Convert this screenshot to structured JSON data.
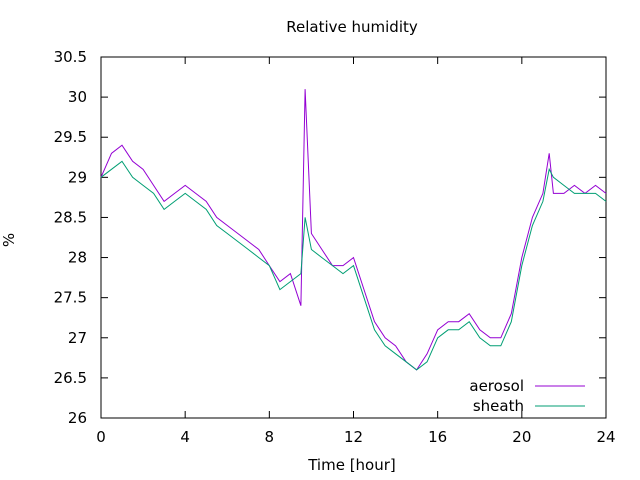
{
  "chart_data": {
    "type": "line",
    "title": "Relative humidity",
    "xlabel": "Time [hour]",
    "ylabel": "%",
    "xlim": [
      0,
      24
    ],
    "ylim": [
      26,
      30.5
    ],
    "xticks": [
      "0",
      "4",
      "8",
      "12",
      "16",
      "20",
      "24"
    ],
    "yticks": [
      "26",
      "26.5",
      "27",
      "27.5",
      "28",
      "28.5",
      "29",
      "29.5",
      "30",
      "30.5"
    ],
    "grid": false,
    "legend": "bottom-right",
    "x": [
      0,
      0.5,
      1,
      1.5,
      2,
      2.5,
      3,
      3.5,
      4,
      4.5,
      5,
      5.5,
      6,
      6.5,
      7,
      7.5,
      8,
      8.5,
      9,
      9.5,
      9.7,
      10,
      10.5,
      11,
      11.5,
      12,
      12.5,
      13,
      13.5,
      14,
      14.5,
      15,
      15.5,
      16,
      16.5,
      17,
      17.5,
      18,
      18.5,
      19,
      19.5,
      20,
      20.5,
      21,
      21.3,
      21.5,
      22,
      22.5,
      23,
      23.5,
      24
    ],
    "series": [
      {
        "name": "aerosol",
        "color": "#9400d3",
        "values": [
          29.0,
          29.3,
          29.4,
          29.2,
          29.1,
          28.9,
          28.7,
          28.8,
          28.9,
          28.8,
          28.7,
          28.5,
          28.4,
          28.3,
          28.2,
          28.1,
          27.9,
          27.7,
          27.8,
          27.4,
          30.1,
          28.3,
          28.1,
          27.9,
          27.9,
          28.0,
          27.6,
          27.2,
          27.0,
          26.9,
          26.7,
          26.6,
          26.8,
          27.1,
          27.2,
          27.2,
          27.3,
          27.1,
          27.0,
          27.0,
          27.3,
          28.0,
          28.5,
          28.8,
          29.3,
          28.8,
          28.8,
          28.9,
          28.8,
          28.9,
          28.8
        ]
      },
      {
        "name": "sheath",
        "color": "#009e73",
        "values": [
          29.0,
          29.1,
          29.2,
          29.0,
          28.9,
          28.8,
          28.6,
          28.7,
          28.8,
          28.7,
          28.6,
          28.4,
          28.3,
          28.2,
          28.1,
          28.0,
          27.9,
          27.6,
          27.7,
          27.8,
          28.5,
          28.1,
          28.0,
          27.9,
          27.8,
          27.9,
          27.5,
          27.1,
          26.9,
          26.8,
          26.7,
          26.6,
          26.7,
          27.0,
          27.1,
          27.1,
          27.2,
          27.0,
          26.9,
          26.9,
          27.2,
          27.9,
          28.4,
          28.7,
          29.1,
          29.0,
          28.9,
          28.8,
          28.8,
          28.8,
          28.7
        ]
      }
    ]
  }
}
